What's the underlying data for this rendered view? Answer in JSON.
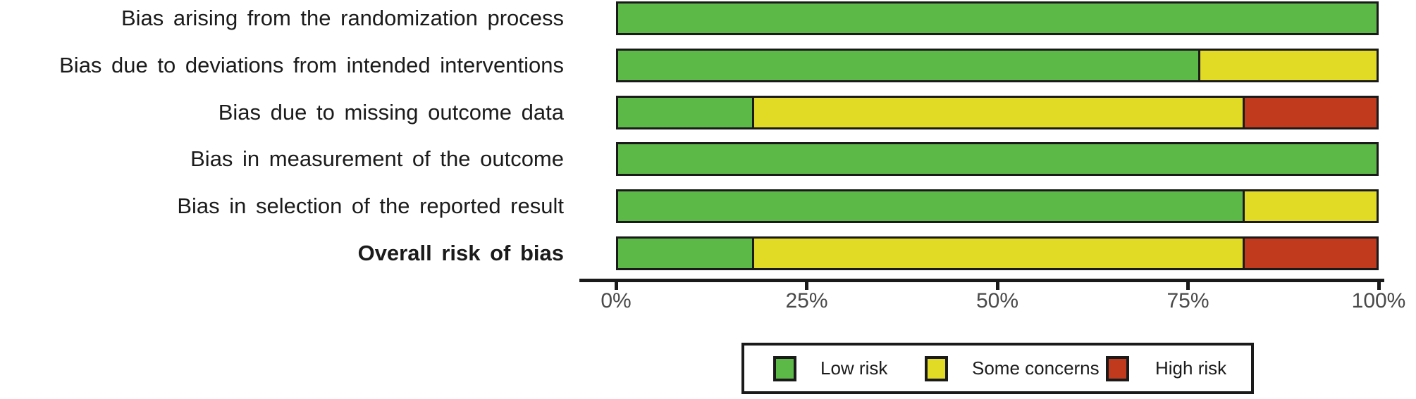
{
  "chart_data": {
    "type": "bar",
    "orientation": "horizontal",
    "stacked": true,
    "unit": "percent",
    "title": "",
    "xlabel": "",
    "ylabel": "",
    "categories": [
      "Bias arising from the randomization process",
      "Bias due to deviations from intended interventions",
      "Bias due to missing outcome data",
      "Bias in measurement of the outcome",
      "Bias in selection of the reported result",
      "Overall risk of bias"
    ],
    "bold_category_index": 5,
    "series": [
      {
        "name": "Low risk",
        "color": "#5CB947",
        "values": [
          100,
          76.47,
          17.65,
          100,
          82.35,
          17.65
        ]
      },
      {
        "name": "Some concerns",
        "color": "#E2DB26",
        "values": [
          0,
          23.53,
          64.7,
          0,
          17.65,
          64.7
        ]
      },
      {
        "name": "High risk",
        "color": "#C23A1E",
        "values": [
          0,
          0,
          17.65,
          0,
          0,
          17.65
        ]
      }
    ],
    "xlim": [
      0,
      100
    ],
    "x_ticks": [
      {
        "label": "0%",
        "value": 0
      },
      {
        "label": "25%",
        "value": 25
      },
      {
        "label": "50%",
        "value": 50
      },
      {
        "label": "75%",
        "value": 75
      },
      {
        "label": "100%",
        "value": 100
      }
    ],
    "grid": false,
    "legend_position": "bottom"
  },
  "legend": {
    "items": [
      {
        "label": "Low risk",
        "color": "#5CB947"
      },
      {
        "label": "Some concerns",
        "color": "#E2DB26"
      },
      {
        "label": "High risk",
        "color": "#C23A1E"
      }
    ]
  },
  "colors": {
    "bar_border": "#1A1A1A",
    "axis_line": "#1A1A1A",
    "tick_label": "#4A4A4A",
    "category_label": "#1B1B1B",
    "background": "#FFFFFF"
  }
}
